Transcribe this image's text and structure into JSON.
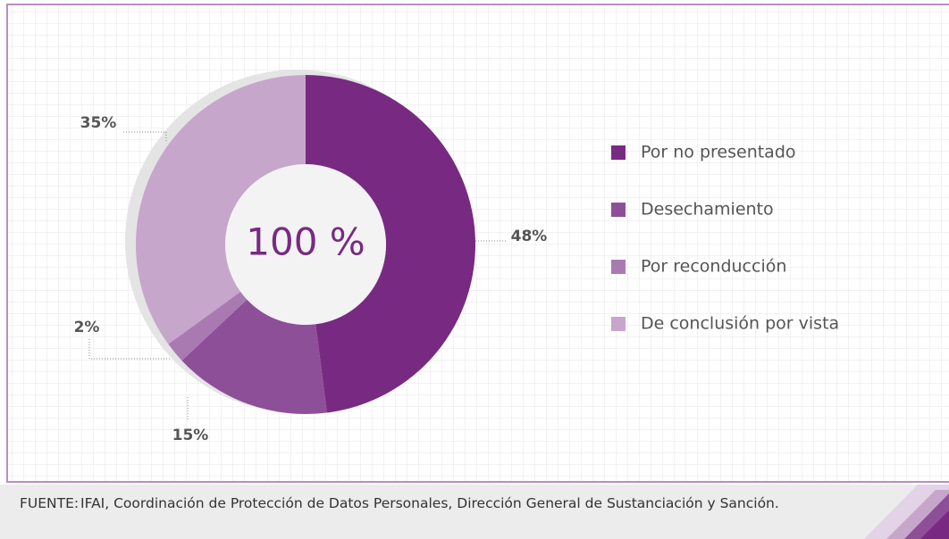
{
  "chart_data": {
    "type": "donut",
    "categories": [
      "Por no presentado",
      "Desechamiento",
      "Por reconducción",
      "De conclusión por vista"
    ],
    "values": [
      48,
      15,
      2,
      35
    ],
    "value_labels": [
      "48%",
      "15%",
      "2%",
      "35%"
    ],
    "colors": [
      "#782a82",
      "#8e4f99",
      "#a97ab2",
      "#c6a6cb"
    ],
    "center_label": "100 %",
    "legend": "right"
  },
  "footer": {
    "label": "FUENTE:",
    "text": "IFAI, Coordinación de Protección de Datos Personales, Dirección General de Sustanciación y Sanción."
  }
}
